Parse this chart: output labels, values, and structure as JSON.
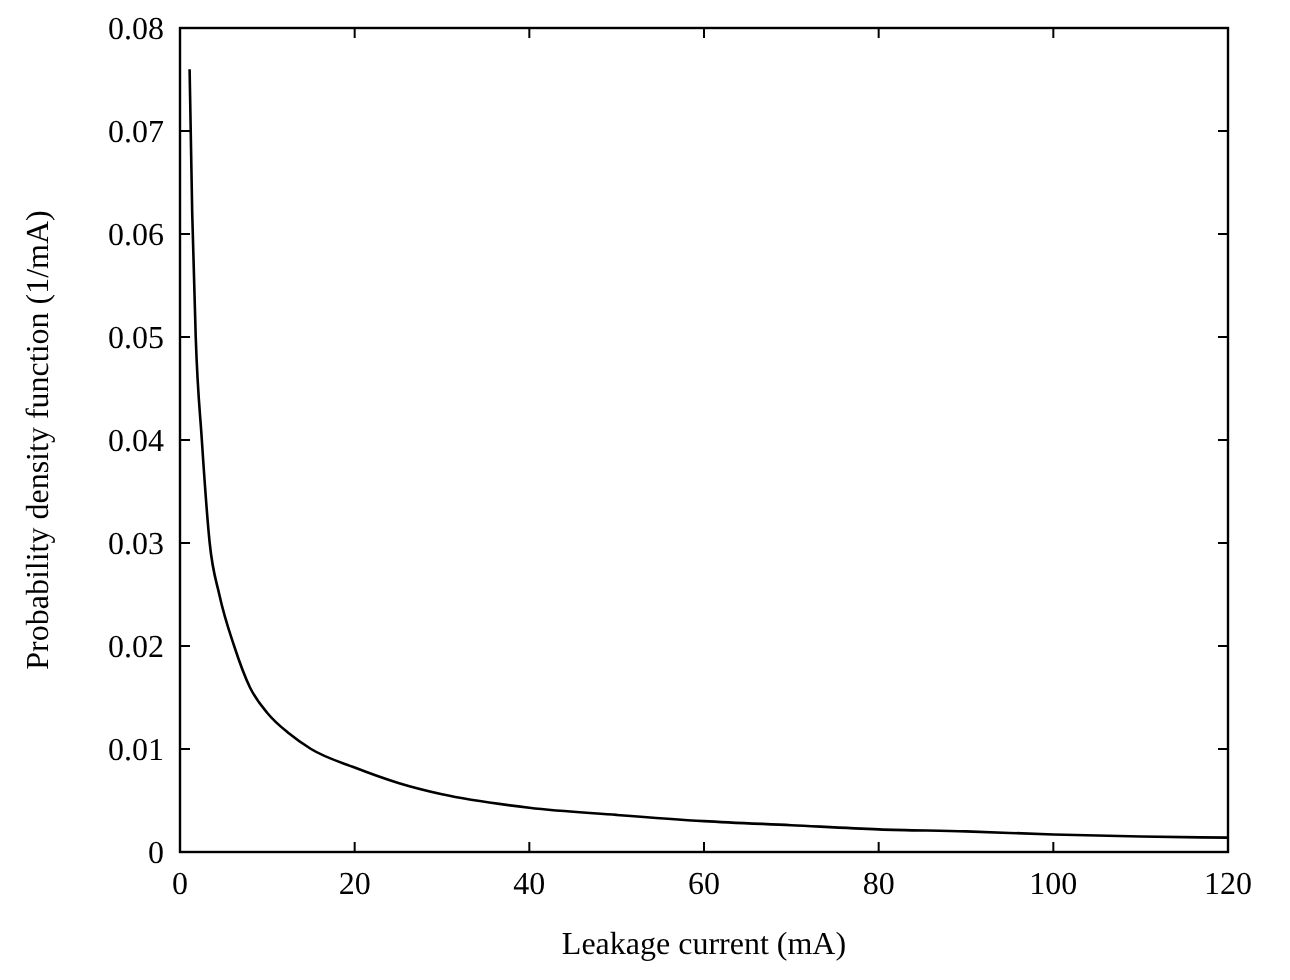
{
  "chart_data": {
    "type": "line",
    "xlabel": "Leakage current (mA)",
    "ylabel": "Probability density function (1/mA)",
    "x": [
      1.1,
      1.4,
      1.8,
      2.5,
      3.4,
      4.5,
      6.2,
      8,
      10,
      12.5,
      15,
      20,
      25,
      30,
      40,
      50,
      60,
      70,
      80,
      90,
      100,
      110,
      120
    ],
    "series": [
      {
        "color": "#000000",
        "values": [
          0.076,
          0.062,
          0.05,
          0.04,
          0.03,
          0.025,
          0.02,
          0.016,
          0.0135,
          0.0115,
          0.01,
          0.0082,
          0.0067,
          0.0056,
          0.0043,
          0.0036,
          0.003,
          0.0026,
          0.0022,
          0.002,
          0.0017,
          0.0015,
          0.0014
        ]
      }
    ],
    "xlim": [
      0,
      120
    ],
    "xticks": [
      0,
      20,
      40,
      60,
      80,
      100,
      120
    ],
    "ylim": [
      0,
      0.08
    ],
    "yticks": [
      0,
      0.01,
      0.02,
      0.03,
      0.04,
      0.05,
      0.06,
      0.07,
      0.08
    ],
    "grid": false,
    "marker": "none",
    "line_style": "solid"
  }
}
